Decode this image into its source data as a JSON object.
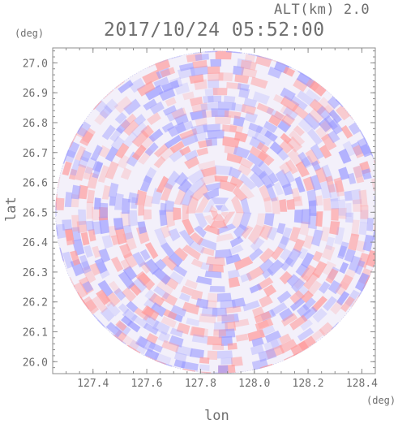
{
  "header": {
    "altitude_label": "ALT(km) 2.0",
    "timestamp": "2017/10/24 05:52:00"
  },
  "chart_data": {
    "type": "heatmap",
    "title": "2017/10/24 05:52:00",
    "subtitle": "ALT(km) 2.0",
    "xlabel": "lon",
    "ylabel": "lat",
    "xunit": "(deg)",
    "yunit": "(deg)",
    "xlim": [
      127.25,
      128.45
    ],
    "ylim": [
      25.96,
      27.05
    ],
    "xticks": [
      127.4,
      127.6,
      127.8,
      128.0,
      128.2,
      128.4
    ],
    "xtick_labels": [
      "127.4",
      "127.6",
      "127.8",
      "128.0",
      "128.2",
      "128.4"
    ],
    "yticks": [
      26.0,
      26.1,
      26.2,
      26.3,
      26.4,
      26.5,
      26.6,
      26.7,
      26.8,
      26.9,
      27.0
    ],
    "ytick_labels": [
      "26.0",
      "26.1",
      "26.2",
      "26.3",
      "26.4",
      "26.5",
      "26.6",
      "26.7",
      "26.8",
      "26.9",
      "27.0"
    ],
    "radar_center": {
      "lon": 127.87,
      "lat": 26.5
    },
    "radar_radius_deg": {
      "lon": 0.61,
      "lat": 0.54
    },
    "colors": {
      "positive": "#ff9a9a",
      "negative": "#9a9aff",
      "neutral": "#f3f0fa"
    },
    "grid": false
  }
}
